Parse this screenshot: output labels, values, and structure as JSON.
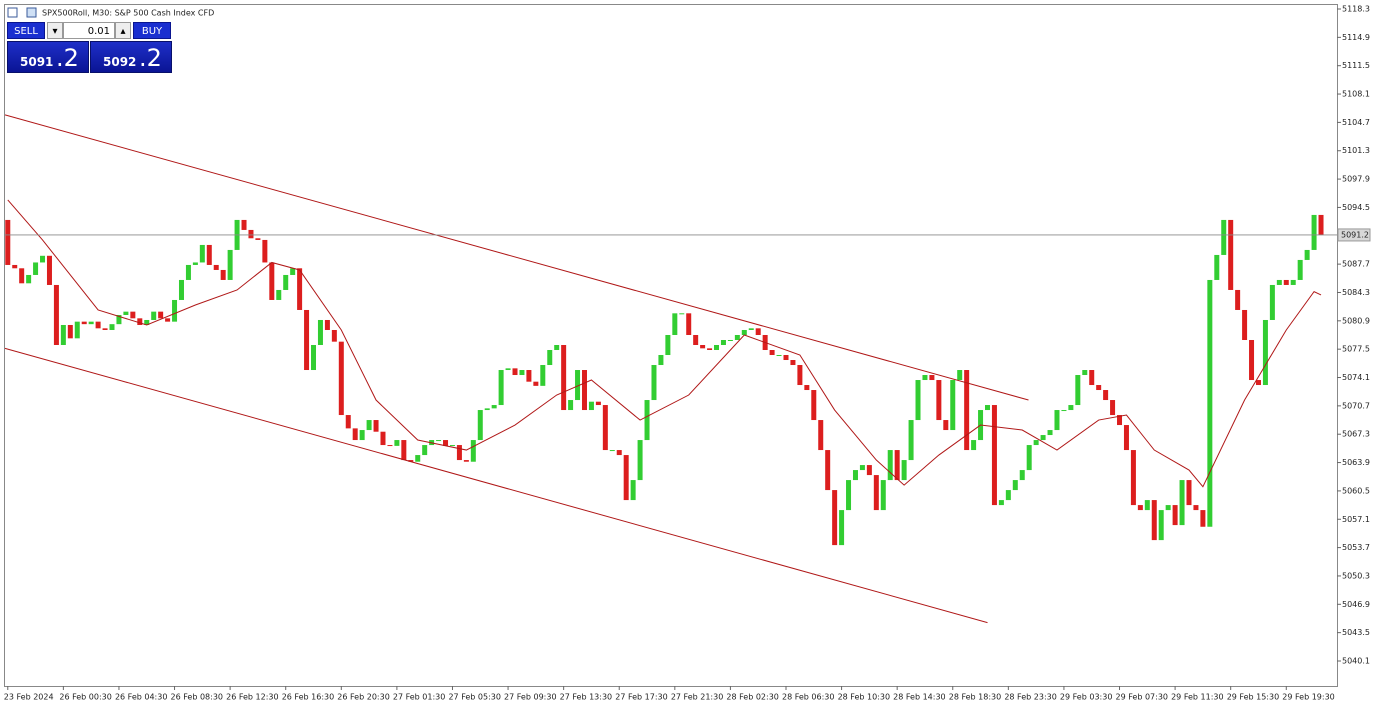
{
  "chart_data": {
    "type": "candlestick",
    "title": "SPX500Roll, M30:  S&P 500 Cash Index CFD",
    "up_color": "#32cd32",
    "down_color": "#dc1e1e",
    "open": [
      5093.0,
      5087.6,
      5087.2,
      5085.4,
      5086.4,
      5087.9,
      5088.7,
      5085.2,
      5078.0,
      5080.4,
      5078.8,
      5080.8,
      5080.5,
      5080.8,
      5080.0,
      5079.8,
      5080.5,
      5081.6,
      5082.0,
      5081.2,
      5080.4,
      5081.0,
      5082.0,
      5081.2,
      5080.8,
      5083.4,
      5085.8,
      5087.6,
      5087.9,
      5090.0,
      5087.6,
      5087.0,
      5085.8,
      5089.4,
      5093.0,
      5091.8,
      5090.8,
      5090.6,
      5087.9,
      5083.4,
      5084.6,
      5086.4,
      5087.2,
      5082.2,
      5075.0,
      5078.0,
      5081.0,
      5079.8,
      5078.4,
      5069.6,
      5068.0,
      5066.6,
      5067.8,
      5069.0,
      5067.6,
      5066.0,
      5065.9,
      5066.6,
      5064.2,
      5064.0,
      5064.8,
      5066.0,
      5066.6,
      5066.6,
      5065.9,
      5066.0,
      5064.2,
      5064.0,
      5066.6,
      5070.2,
      5070.4,
      5070.8,
      5075.0,
      5075.2,
      5074.4,
      5075.0,
      5073.6,
      5073.1,
      5075.6,
      5077.4,
      5078.0,
      5070.2,
      5071.4,
      5075.0,
      5070.2,
      5071.2,
      5070.8,
      5065.4,
      5065.4,
      5064.8,
      5059.4,
      5061.8,
      5066.6,
      5071.4,
      5075.6,
      5076.8,
      5079.2,
      5081.8,
      5081.8,
      5079.2,
      5078.0,
      5077.6,
      5077.4,
      5078.0,
      5078.6,
      5078.6,
      5079.2,
      5079.8,
      5080.0,
      5079.2,
      5077.4,
      5076.8,
      5076.8,
      5076.2,
      5075.6,
      5073.2,
      5072.6,
      5069.0,
      5065.4,
      5060.6,
      5054.0,
      5058.2,
      5061.8,
      5063.0,
      5063.6,
      5062.4,
      5058.2,
      5061.8,
      5065.4,
      5061.8,
      5064.2,
      5069.0,
      5073.8,
      5074.4,
      5073.8,
      5069.0,
      5067.8,
      5073.8,
      5075.0,
      5065.4,
      5066.6,
      5070.2,
      5070.8,
      5058.8,
      5059.4,
      5060.6,
      5061.8,
      5063.0,
      5066.0,
      5066.6,
      5067.2,
      5067.8,
      5070.2,
      5070.2,
      5070.8,
      5074.4,
      5075.0,
      5073.2,
      5072.6,
      5071.4,
      5069.6,
      5068.4,
      5065.4,
      5058.8,
      5058.2,
      5059.4,
      5054.6,
      5058.2,
      5058.8,
      5056.4,
      5061.8,
      5058.8,
      5058.2,
      5056.2,
      5085.8,
      5088.8,
      5093.0,
      5084.6,
      5082.2,
      5078.6,
      5073.8,
      5073.2,
      5081.0,
      5085.2,
      5085.8,
      5085.2,
      5085.8,
      5088.2,
      5089.4,
      5093.6
    ],
    "close": [
      5087.6,
      5087.2,
      5085.4,
      5086.4,
      5087.9,
      5088.7,
      5085.2,
      5078.0,
      5080.4,
      5078.8,
      5080.8,
      5080.5,
      5080.8,
      5080.0,
      5079.8,
      5080.5,
      5081.6,
      5082.0,
      5081.2,
      5080.4,
      5081.0,
      5082.0,
      5081.2,
      5080.8,
      5083.4,
      5085.8,
      5087.6,
      5087.9,
      5090.0,
      5087.6,
      5087.0,
      5085.8,
      5089.4,
      5093.0,
      5091.8,
      5090.8,
      5090.6,
      5087.9,
      5083.4,
      5084.6,
      5086.4,
      5087.2,
      5082.2,
      5075.0,
      5078.0,
      5081.0,
      5079.8,
      5078.4,
      5069.6,
      5068.0,
      5066.6,
      5067.8,
      5069.0,
      5067.6,
      5066.0,
      5065.9,
      5066.6,
      5064.2,
      5064.0,
      5064.8,
      5066.0,
      5066.6,
      5066.6,
      5065.9,
      5066.0,
      5064.2,
      5064.0,
      5066.6,
      5070.2,
      5070.4,
      5070.8,
      5075.0,
      5075.2,
      5074.4,
      5075.0,
      5073.6,
      5073.1,
      5075.6,
      5077.4,
      5078.0,
      5070.2,
      5071.4,
      5075.0,
      5070.2,
      5071.2,
      5070.8,
      5065.4,
      5065.4,
      5064.8,
      5059.4,
      5061.8,
      5066.6,
      5071.4,
      5075.6,
      5076.8,
      5079.2,
      5081.8,
      5081.8,
      5079.2,
      5078.0,
      5077.6,
      5077.4,
      5078.0,
      5078.6,
      5078.6,
      5079.2,
      5079.8,
      5080.0,
      5079.2,
      5077.4,
      5076.8,
      5076.8,
      5076.2,
      5075.6,
      5073.2,
      5072.6,
      5069.0,
      5065.4,
      5060.6,
      5054.0,
      5058.2,
      5061.8,
      5063.0,
      5063.6,
      5062.4,
      5058.2,
      5061.8,
      5065.4,
      5061.8,
      5064.2,
      5069.0,
      5073.8,
      5074.4,
      5073.8,
      5069.0,
      5067.8,
      5073.8,
      5075.0,
      5065.4,
      5066.6,
      5070.2,
      5070.8,
      5058.8,
      5059.4,
      5060.6,
      5061.8,
      5063.0,
      5066.0,
      5066.6,
      5067.2,
      5067.8,
      5070.2,
      5070.2,
      5070.8,
      5074.4,
      5075.0,
      5073.2,
      5072.6,
      5071.4,
      5069.6,
      5068.4,
      5065.4,
      5058.8,
      5058.2,
      5059.4,
      5054.6,
      5058.2,
      5058.8,
      5056.4,
      5061.8,
      5058.8,
      5058.2,
      5056.2,
      5085.8,
      5088.8,
      5093.0,
      5084.6,
      5082.2,
      5078.6,
      5073.8,
      5073.2,
      5081.0,
      5085.2,
      5085.8,
      5085.2,
      5085.8,
      5088.2,
      5089.4,
      5093.6,
      5091.2
    ],
    "moving_average": {
      "color": "#b01818",
      "x": [
        0,
        5,
        13,
        20,
        27,
        33,
        38,
        42,
        48,
        53,
        59,
        66,
        73,
        79,
        84,
        91,
        98,
        106,
        114,
        119,
        125,
        129,
        134,
        140,
        146,
        151,
        157,
        161,
        165,
        170,
        172,
        178,
        184,
        188,
        189
      ],
      "values": [
        5095.4,
        5090.6,
        5082.2,
        5080.4,
        5082.8,
        5084.6,
        5087.9,
        5087.0,
        5079.8,
        5071.4,
        5066.6,
        5065.4,
        5068.4,
        5072.0,
        5073.8,
        5069.0,
        5072.0,
        5079.2,
        5076.8,
        5070.2,
        5064.2,
        5061.2,
        5064.8,
        5068.4,
        5067.8,
        5065.4,
        5069.0,
        5069.6,
        5065.4,
        5063.0,
        5061.0,
        5071.4,
        5079.8,
        5084.4,
        5084.0
      ]
    },
    "trendlines": [
      {
        "color": "#b01818",
        "x": [
          -0.4,
          146.9
        ],
        "values": [
          5105.6,
          5071.4
        ]
      },
      {
        "color": "#b01818",
        "x": [
          -0.4,
          141
        ],
        "values": [
          5077.6,
          5044.7
        ]
      }
    ],
    "current_price": 5091.2,
    "xlim": [
      -0.4,
      191.3
    ],
    "ylim": [
      5037.1,
      5118.9
    ],
    "yticks": [
      5118.3,
      5114.9,
      5111.5,
      5108.1,
      5104.7,
      5101.3,
      5097.9,
      5094.5,
      5087.7,
      5084.3,
      5080.9,
      5077.5,
      5074.1,
      5070.7,
      5067.3,
      5063.9,
      5060.5,
      5057.1,
      5053.7,
      5050.3,
      5046.9,
      5043.5,
      5040.1
    ],
    "xticks": [
      {
        "value": 0,
        "label": "23 Feb 2024"
      },
      {
        "value": 8,
        "label": "26 Feb 00:30"
      },
      {
        "value": 16,
        "label": "26 Feb 04:30"
      },
      {
        "value": 24,
        "label": "26 Feb 08:30"
      },
      {
        "value": 32,
        "label": "26 Feb 12:30"
      },
      {
        "value": 40,
        "label": "26 Feb 16:30"
      },
      {
        "value": 48,
        "label": "26 Feb 20:30"
      },
      {
        "value": 56,
        "label": "27 Feb 01:30"
      },
      {
        "value": 64,
        "label": "27 Feb 05:30"
      },
      {
        "value": 72,
        "label": "27 Feb 09:30"
      },
      {
        "value": 80,
        "label": "27 Feb 13:30"
      },
      {
        "value": 88,
        "label": "27 Feb 17:30"
      },
      {
        "value": 96,
        "label": "27 Feb 21:30"
      },
      {
        "value": 104,
        "label": "28 Feb 02:30"
      },
      {
        "value": 112,
        "label": "28 Feb 06:30"
      },
      {
        "value": 120,
        "label": "28 Feb 10:30"
      },
      {
        "value": 128,
        "label": "28 Feb 14:30"
      },
      {
        "value": 136,
        "label": "28 Feb 18:30"
      },
      {
        "value": 144,
        "label": "28 Feb 23:30"
      },
      {
        "value": 152,
        "label": "29 Feb 03:30"
      },
      {
        "value": 160,
        "label": "29 Feb 07:30"
      },
      {
        "value": 168,
        "label": "29 Feb 11:30"
      },
      {
        "value": 176,
        "label": "29 Feb 15:30"
      },
      {
        "value": 184,
        "label": "29 Feb 19:30"
      }
    ]
  },
  "trade_panel": {
    "sell": "SELL",
    "lot": "0.01",
    "buy": "BUY",
    "bid_main": "5091",
    "bid_fraction": ".2",
    "ask_main": "5092",
    "ask_fraction": ".2"
  }
}
